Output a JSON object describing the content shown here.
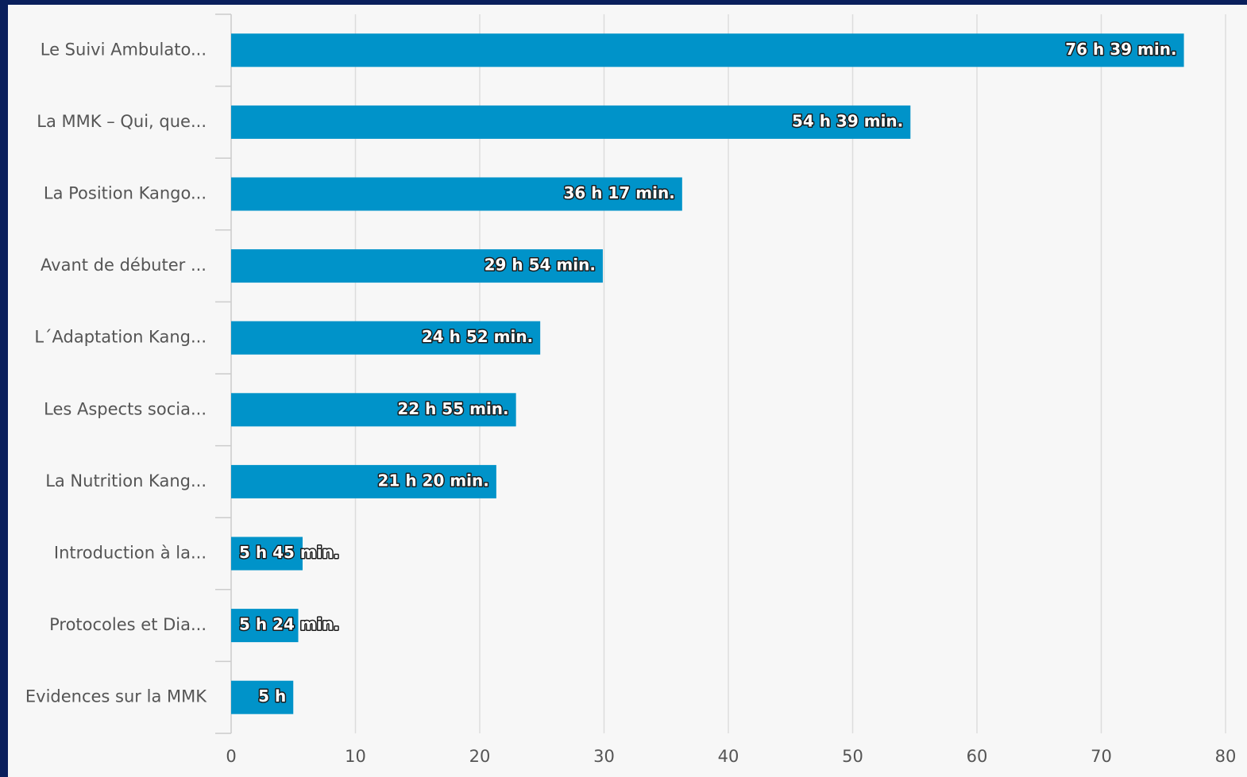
{
  "chart_data": {
    "type": "bar",
    "orientation": "horizontal",
    "categories": [
      "Le Suivi Ambulato...",
      "La MMK – Qui, que...",
      "La Position Kango...",
      "Avant de débuter ...",
      "L´Adaptation Kang...",
      "Les Aspects socia...",
      "La Nutrition Kang...",
      "Introduction à la...",
      "Protocoles et Dia...",
      "Evidences sur la MMK"
    ],
    "values": [
      76.65,
      54.65,
      36.283,
      29.9,
      24.867,
      22.917,
      21.333,
      5.75,
      5.4,
      5.0
    ],
    "data_labels": [
      "76 h 39 min.",
      "54 h 39 min.",
      "36 h 17 min.",
      "29 h 54 min.",
      "24 h 52 min.",
      "22 h 55 min.",
      "21 h 20 min.",
      "5 h 45 min.",
      "5 h 24 min.",
      "5 h"
    ],
    "xlim": [
      0,
      80
    ],
    "xticks": [
      0,
      10,
      20,
      30,
      40,
      50,
      60,
      70,
      80
    ],
    "xtick_labels": [
      "0",
      "10",
      "20",
      "30",
      "40",
      "50",
      "60",
      "70",
      "80"
    ],
    "title": "",
    "xlabel": "",
    "ylabel": "",
    "grid": true,
    "legend": "none",
    "colors": {
      "bar": "#0093c9",
      "grid": "#dddddd",
      "axis": "#cccccc",
      "text": "#555555",
      "background": "#f7f7f7",
      "page": "#0a1f5c"
    }
  }
}
